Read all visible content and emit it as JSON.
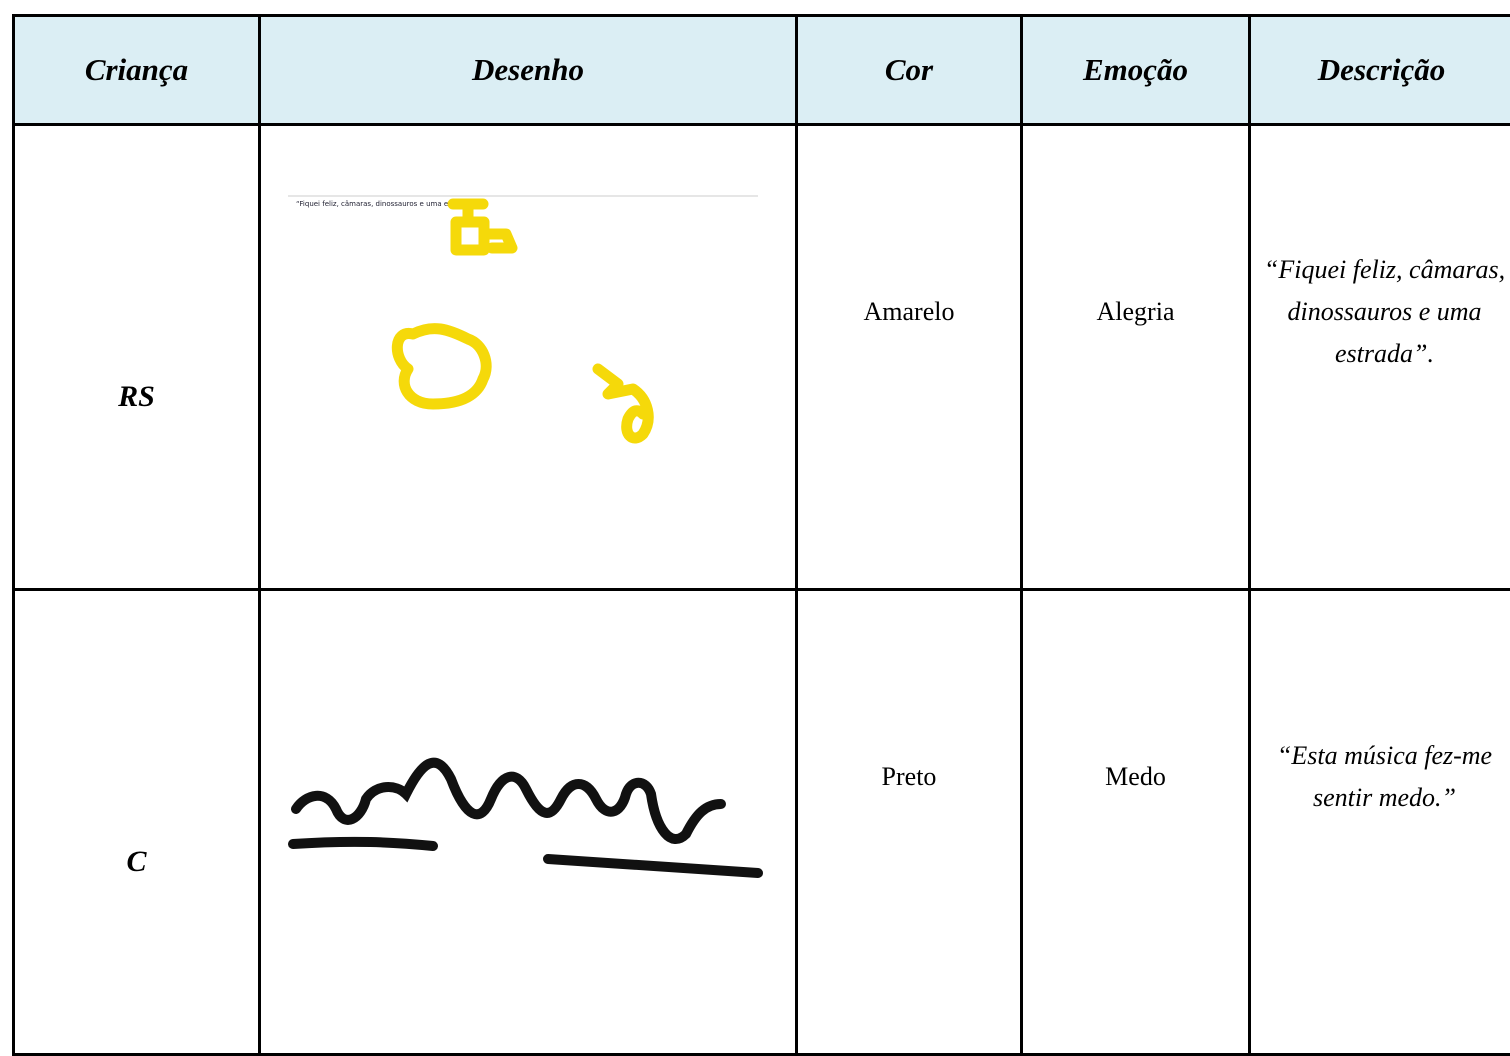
{
  "table": {
    "header": [
      "Criança",
      "Desenho",
      "Cor",
      "Emoção",
      "Descrição"
    ],
    "rows": [
      {
        "child": "RS",
        "drawing_note": "“Fiquei feliz, câmaras, dinossauros e uma estrada”",
        "color": "Amarelo",
        "emotion": "Alegria",
        "description": "“Fiquei feliz, câmaras, dinossauros e uma estrada”."
      },
      {
        "child": "C",
        "color": "Preto",
        "emotion": "Medo",
        "description": "“Esta música fez-me sentir medo.”"
      }
    ]
  }
}
